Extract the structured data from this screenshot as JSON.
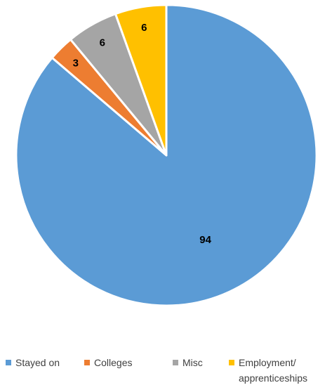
{
  "chart_data": {
    "type": "pie",
    "categories": [
      "Stayed on",
      "Colleges",
      "Misc",
      "Employment/\napprenticeships"
    ],
    "values": [
      94,
      3,
      6,
      6
    ],
    "data_labels": [
      "94",
      "3",
      "6",
      "6"
    ],
    "colors": [
      "#5B9BD5",
      "#ED7D31",
      "#A5A5A5",
      "#FFC000"
    ],
    "start_angle": "12 o'clock, clockwise",
    "legend_position": "bottom",
    "title": "",
    "xlabel": "",
    "ylabel": ""
  }
}
